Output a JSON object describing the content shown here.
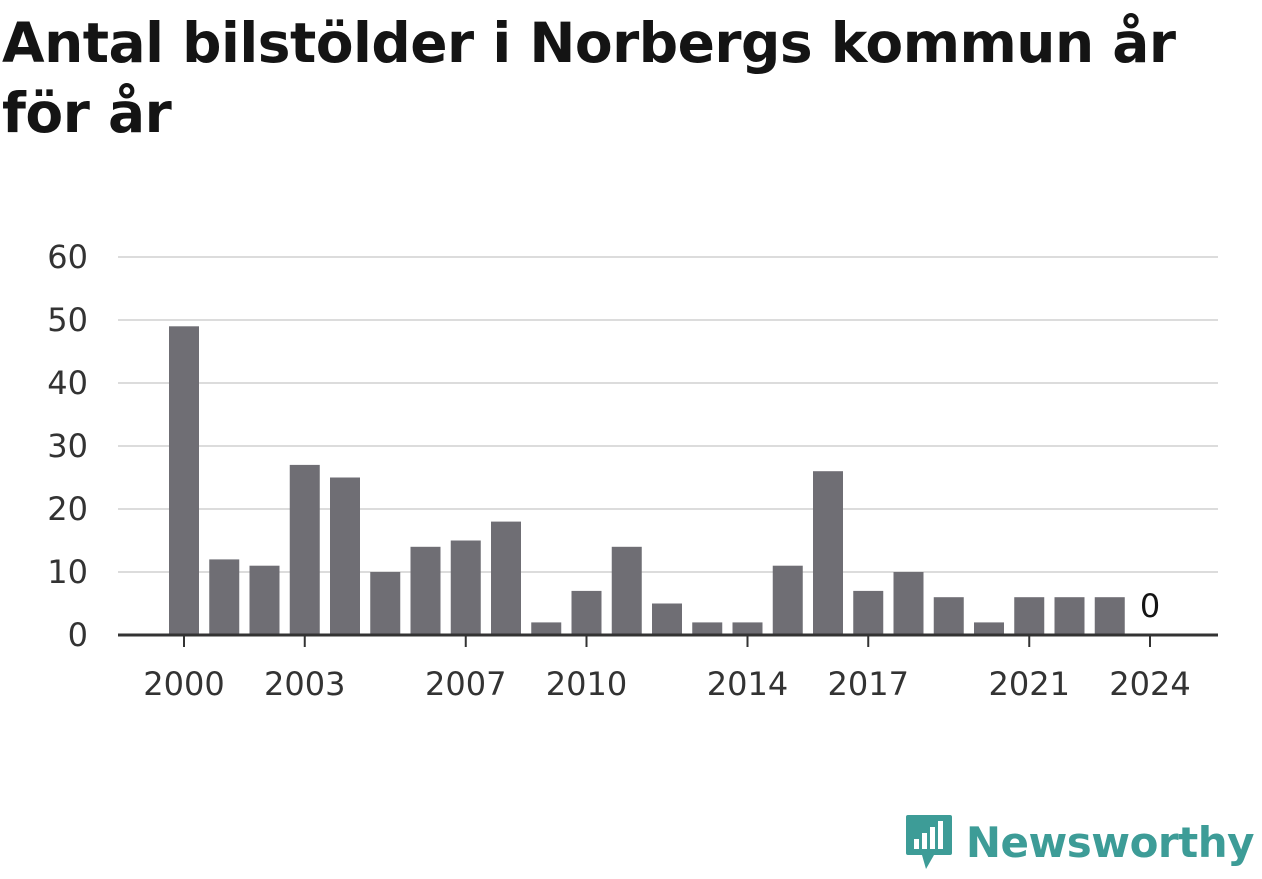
{
  "brand": {
    "name": "Newsworthy",
    "color": "#3d9c97"
  },
  "chart_data": {
    "type": "bar",
    "title": "Antal bilstölder i Norbergs kommun år för år",
    "xlabel": "",
    "ylabel": "",
    "categories": [
      2000,
      2001,
      2002,
      2003,
      2004,
      2005,
      2006,
      2007,
      2008,
      2009,
      2010,
      2011,
      2012,
      2013,
      2014,
      2015,
      2016,
      2017,
      2018,
      2019,
      2020,
      2021,
      2022,
      2023,
      2024
    ],
    "values": [
      49,
      12,
      11,
      27,
      25,
      10,
      14,
      15,
      18,
      2,
      7,
      14,
      5,
      2,
      2,
      11,
      26,
      7,
      10,
      6,
      2,
      6,
      6,
      6,
      0
    ],
    "x_tick_labels": [
      "2000",
      "2003",
      "2007",
      "2010",
      "2014",
      "2017",
      "2021",
      "2024"
    ],
    "y_ticks": [
      0,
      10,
      20,
      30,
      40,
      50,
      60
    ],
    "ylim": [
      0,
      60
    ],
    "grid": true,
    "legend": "none",
    "annotations": [
      {
        "x": 2024,
        "label": "0"
      }
    ],
    "bar_color": "#6f6e74",
    "grid_color": "#dcdcdc",
    "axis_color": "#333333"
  }
}
